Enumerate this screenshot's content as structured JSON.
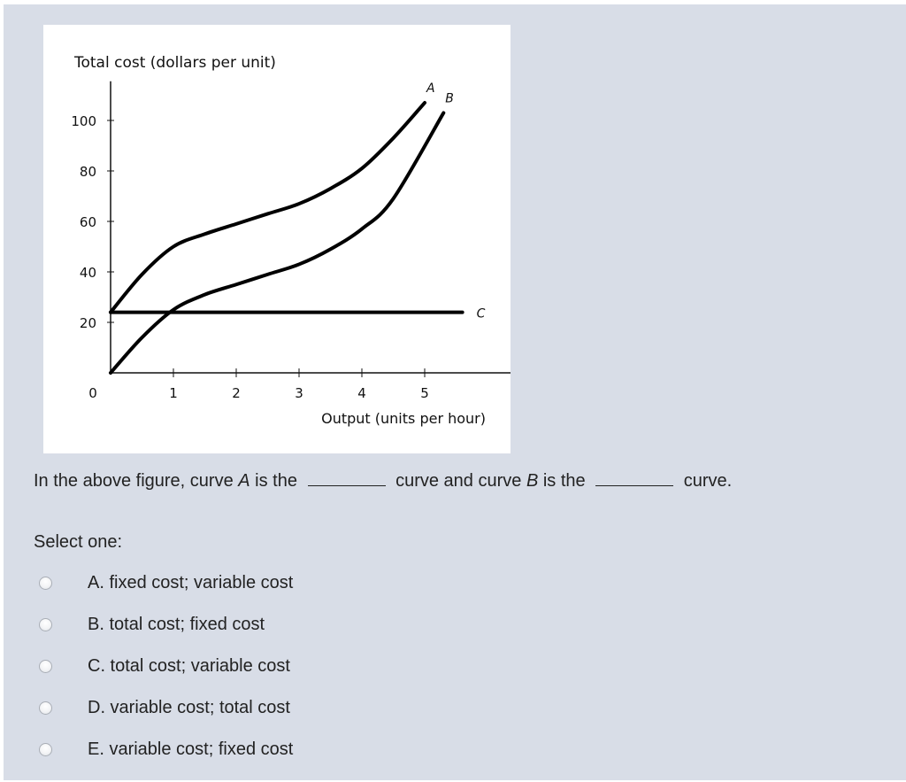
{
  "chart_data": {
    "type": "line",
    "title": "Total cost (dollars per unit)",
    "xlabel": "Output (units per hour)",
    "ylabel": "Total cost (dollars per unit)",
    "x_tick_labels": [
      "0",
      "1",
      "2",
      "3",
      "4",
      "5"
    ],
    "y_tick_labels": [
      "20",
      "40",
      "60",
      "80",
      "100"
    ],
    "xlim": [
      0,
      6.1
    ],
    "ylim": [
      0,
      112
    ],
    "series": [
      {
        "name": "A",
        "x": [
          0,
          0.5,
          1,
          1.5,
          2,
          2.5,
          3,
          3.5,
          4,
          4.5,
          5.0
        ],
        "y": [
          24,
          39,
          50,
          55,
          59,
          63,
          67,
          73,
          81,
          93,
          107
        ]
      },
      {
        "name": "B",
        "x": [
          0,
          0.5,
          1,
          1.5,
          2,
          2.5,
          3,
          3.5,
          4,
          4.5,
          5.3
        ],
        "y": [
          0,
          14,
          25,
          31,
          35,
          39,
          43,
          49,
          57,
          69,
          103
        ]
      },
      {
        "name": "C",
        "x": [
          0,
          5.6
        ],
        "y": [
          24,
          24
        ]
      }
    ]
  },
  "question": {
    "part1": "In the above figure, curve ",
    "curve_a": "A",
    "part2": " is the ",
    "part3": " curve and curve ",
    "curve_b": "B",
    "part4": " is the ",
    "part5": " curve."
  },
  "prompt": "Select one:",
  "options": [
    {
      "label": "A. fixed cost; variable cost"
    },
    {
      "label": "B. total cost; fixed cost"
    },
    {
      "label": "C. total cost; variable cost"
    },
    {
      "label": "D. variable cost; total cost"
    },
    {
      "label": "E. variable cost; fixed cost"
    }
  ]
}
